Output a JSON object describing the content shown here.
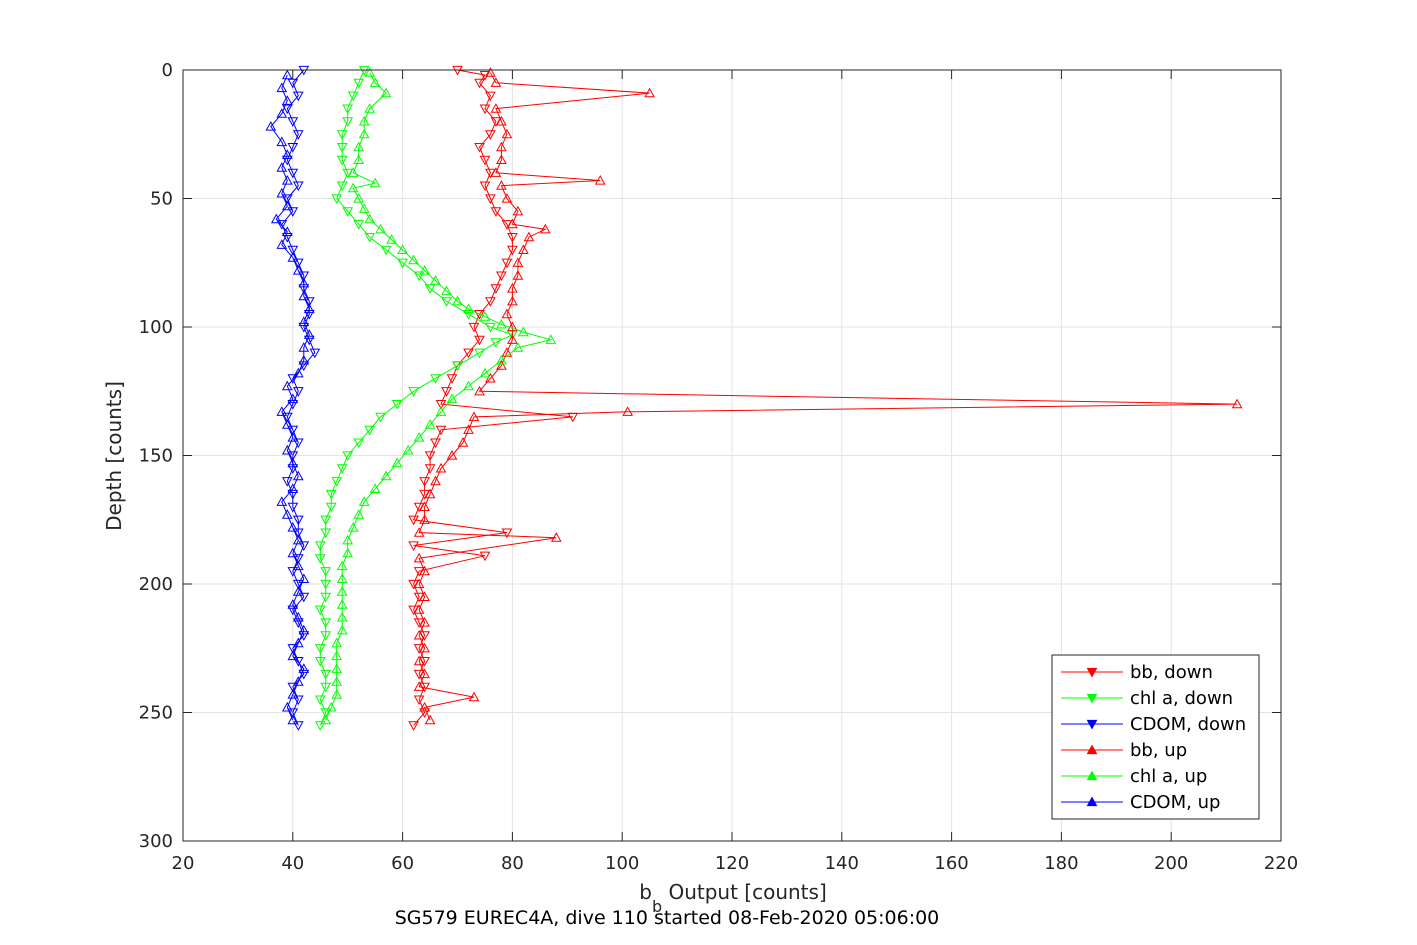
{
  "chart_data": {
    "type": "line",
    "title": "",
    "xlabel_base": "b",
    "xlabel_sub": "b",
    "xlabel_rest": " Output [counts]",
    "ylabel": "Depth [counts]",
    "caption": "SG579 EUREC4A, dive 110 started 08-Feb-2020 05:06:00",
    "xlim": [
      20,
      220
    ],
    "ylim": [
      300,
      0
    ],
    "xticks": [
      20,
      40,
      60,
      80,
      100,
      120,
      140,
      160,
      180,
      200,
      220
    ],
    "yticks": [
      0,
      50,
      100,
      150,
      200,
      250,
      300
    ],
    "grid": true,
    "legend_position": "bottom-right",
    "series": [
      {
        "name": "bb, down",
        "color": "#ff0000",
        "marker": "triangle-down",
        "points": [
          [
            70,
            0
          ],
          [
            75,
            2
          ],
          [
            74,
            5
          ],
          [
            76,
            10
          ],
          [
            75,
            15
          ],
          [
            77,
            20
          ],
          [
            76,
            25
          ],
          [
            74,
            30
          ],
          [
            75,
            35
          ],
          [
            76,
            40
          ],
          [
            75,
            45
          ],
          [
            76,
            50
          ],
          [
            77,
            55
          ],
          [
            79,
            60
          ],
          [
            80,
            65
          ],
          [
            80,
            70
          ],
          [
            79,
            75
          ],
          [
            78,
            80
          ],
          [
            77,
            85
          ],
          [
            76,
            90
          ],
          [
            74,
            95
          ],
          [
            73,
            100
          ],
          [
            74,
            105
          ],
          [
            72,
            110
          ],
          [
            70,
            115
          ],
          [
            69,
            120
          ],
          [
            68,
            125
          ],
          [
            67,
            130
          ],
          [
            91,
            135
          ],
          [
            67,
            140
          ],
          [
            66,
            145
          ],
          [
            65,
            150
          ],
          [
            65,
            155
          ],
          [
            64,
            160
          ],
          [
            64,
            165
          ],
          [
            63,
            170
          ],
          [
            62,
            175
          ],
          [
            79,
            180
          ],
          [
            62,
            185
          ],
          [
            75,
            189
          ],
          [
            63,
            195
          ],
          [
            62,
            200
          ],
          [
            63,
            205
          ],
          [
            62,
            210
          ],
          [
            63,
            215
          ],
          [
            64,
            220
          ],
          [
            63,
            225
          ],
          [
            64,
            230
          ],
          [
            63,
            235
          ],
          [
            64,
            240
          ],
          [
            63,
            245
          ],
          [
            64,
            250
          ],
          [
            62,
            255
          ]
        ]
      },
      {
        "name": "chl a, down",
        "color": "#00ff00",
        "marker": "triangle-down",
        "points": [
          [
            53,
            0
          ],
          [
            52,
            5
          ],
          [
            51,
            10
          ],
          [
            50,
            15
          ],
          [
            50,
            20
          ],
          [
            49,
            25
          ],
          [
            49,
            30
          ],
          [
            49,
            35
          ],
          [
            50,
            40
          ],
          [
            49,
            45
          ],
          [
            48,
            50
          ],
          [
            50,
            55
          ],
          [
            52,
            60
          ],
          [
            54,
            65
          ],
          [
            57,
            70
          ],
          [
            60,
            75
          ],
          [
            63,
            80
          ],
          [
            65,
            85
          ],
          [
            68,
            90
          ],
          [
            72,
            95
          ],
          [
            76,
            100
          ],
          [
            80,
            103
          ],
          [
            77,
            106
          ],
          [
            74,
            110
          ],
          [
            70,
            115
          ],
          [
            66,
            120
          ],
          [
            62,
            125
          ],
          [
            59,
            130
          ],
          [
            56,
            135
          ],
          [
            54,
            140
          ],
          [
            52,
            145
          ],
          [
            50,
            150
          ],
          [
            49,
            155
          ],
          [
            48,
            160
          ],
          [
            47,
            165
          ],
          [
            47,
            170
          ],
          [
            46,
            175
          ],
          [
            46,
            180
          ],
          [
            45,
            185
          ],
          [
            45,
            190
          ],
          [
            46,
            195
          ],
          [
            46,
            200
          ],
          [
            46,
            205
          ],
          [
            45,
            210
          ],
          [
            46,
            215
          ],
          [
            46,
            220
          ],
          [
            45,
            225
          ],
          [
            45,
            230
          ],
          [
            46,
            235
          ],
          [
            46,
            240
          ],
          [
            45,
            245
          ],
          [
            46,
            250
          ],
          [
            45,
            255
          ]
        ]
      },
      {
        "name": "CDOM, down",
        "color": "#0000ff",
        "marker": "triangle-down",
        "points": [
          [
            42,
            0
          ],
          [
            40,
            5
          ],
          [
            41,
            10
          ],
          [
            39,
            15
          ],
          [
            40,
            20
          ],
          [
            41,
            25
          ],
          [
            40,
            30
          ],
          [
            39,
            35
          ],
          [
            40,
            40
          ],
          [
            41,
            45
          ],
          [
            39,
            50
          ],
          [
            40,
            55
          ],
          [
            38,
            60
          ],
          [
            39,
            65
          ],
          [
            40,
            70
          ],
          [
            41,
            75
          ],
          [
            42,
            80
          ],
          [
            42,
            85
          ],
          [
            43,
            90
          ],
          [
            43,
            95
          ],
          [
            42,
            100
          ],
          [
            43,
            105
          ],
          [
            44,
            110
          ],
          [
            42,
            115
          ],
          [
            40,
            120
          ],
          [
            41,
            125
          ],
          [
            40,
            130
          ],
          [
            39,
            135
          ],
          [
            40,
            140
          ],
          [
            41,
            145
          ],
          [
            40,
            150
          ],
          [
            40,
            155
          ],
          [
            39,
            160
          ],
          [
            40,
            165
          ],
          [
            40,
            170
          ],
          [
            41,
            175
          ],
          [
            41,
            180
          ],
          [
            42,
            185
          ],
          [
            41,
            190
          ],
          [
            40,
            195
          ],
          [
            41,
            200
          ],
          [
            42,
            205
          ],
          [
            40,
            210
          ],
          [
            41,
            215
          ],
          [
            42,
            220
          ],
          [
            40,
            225
          ],
          [
            41,
            230
          ],
          [
            42,
            235
          ],
          [
            40,
            240
          ],
          [
            41,
            245
          ],
          [
            40,
            250
          ],
          [
            41,
            255
          ]
        ]
      },
      {
        "name": "bb, up",
        "color": "#ff0000",
        "marker": "triangle-up",
        "points": [
          [
            65,
            253
          ],
          [
            64,
            248
          ],
          [
            73,
            244
          ],
          [
            63,
            240
          ],
          [
            64,
            235
          ],
          [
            63,
            230
          ],
          [
            64,
            225
          ],
          [
            63,
            220
          ],
          [
            64,
            215
          ],
          [
            63,
            210
          ],
          [
            64,
            205
          ],
          [
            63,
            200
          ],
          [
            64,
            195
          ],
          [
            63,
            190
          ],
          [
            88,
            182
          ],
          [
            63,
            180
          ],
          [
            64,
            175
          ],
          [
            64,
            170
          ],
          [
            65,
            165
          ],
          [
            66,
            160
          ],
          [
            67,
            155
          ],
          [
            69,
            150
          ],
          [
            71,
            145
          ],
          [
            72,
            140
          ],
          [
            73,
            135
          ],
          [
            101,
            133
          ],
          [
            212,
            130
          ],
          [
            74,
            125
          ],
          [
            76,
            120
          ],
          [
            78,
            115
          ],
          [
            79,
            110
          ],
          [
            80,
            105
          ],
          [
            80,
            100
          ],
          [
            79,
            95
          ],
          [
            80,
            90
          ],
          [
            80,
            85
          ],
          [
            81,
            80
          ],
          [
            81,
            75
          ],
          [
            82,
            70
          ],
          [
            83,
            65
          ],
          [
            86,
            62
          ],
          [
            80,
            60
          ],
          [
            81,
            55
          ],
          [
            79,
            50
          ],
          [
            78,
            45
          ],
          [
            96,
            43
          ],
          [
            77,
            40
          ],
          [
            78,
            35
          ],
          [
            78,
            30
          ],
          [
            79,
            25
          ],
          [
            78,
            20
          ],
          [
            77,
            15
          ],
          [
            105,
            9
          ],
          [
            77,
            5
          ],
          [
            76,
            1
          ]
        ]
      },
      {
        "name": "chl a, up",
        "color": "#00ff00",
        "marker": "triangle-up",
        "points": [
          [
            46,
            253
          ],
          [
            47,
            248
          ],
          [
            48,
            243
          ],
          [
            48,
            238
          ],
          [
            48,
            233
          ],
          [
            48,
            228
          ],
          [
            48,
            223
          ],
          [
            49,
            218
          ],
          [
            49,
            213
          ],
          [
            49,
            208
          ],
          [
            49,
            203
          ],
          [
            49,
            198
          ],
          [
            49,
            193
          ],
          [
            50,
            188
          ],
          [
            50,
            183
          ],
          [
            51,
            178
          ],
          [
            52,
            173
          ],
          [
            53,
            168
          ],
          [
            55,
            163
          ],
          [
            57,
            158
          ],
          [
            59,
            153
          ],
          [
            61,
            148
          ],
          [
            63,
            143
          ],
          [
            65,
            138
          ],
          [
            67,
            133
          ],
          [
            69,
            128
          ],
          [
            72,
            123
          ],
          [
            75,
            118
          ],
          [
            78,
            113
          ],
          [
            81,
            108
          ],
          [
            87,
            105
          ],
          [
            82,
            102
          ],
          [
            78,
            99
          ],
          [
            75,
            96
          ],
          [
            72,
            93
          ],
          [
            70,
            90
          ],
          [
            68,
            86
          ],
          [
            66,
            82
          ],
          [
            64,
            78
          ],
          [
            62,
            74
          ],
          [
            60,
            70
          ],
          [
            58,
            66
          ],
          [
            56,
            62
          ],
          [
            54,
            58
          ],
          [
            53,
            54
          ],
          [
            52,
            50
          ],
          [
            51,
            46
          ],
          [
            55,
            44
          ],
          [
            51,
            40
          ],
          [
            52,
            35
          ],
          [
            52,
            30
          ],
          [
            53,
            25
          ],
          [
            53,
            20
          ],
          [
            54,
            15
          ],
          [
            57,
            9
          ],
          [
            55,
            5
          ],
          [
            54,
            1
          ]
        ]
      },
      {
        "name": "CDOM, up",
        "color": "#0000ff",
        "marker": "triangle-up",
        "points": [
          [
            40,
            253
          ],
          [
            39,
            248
          ],
          [
            40,
            243
          ],
          [
            41,
            238
          ],
          [
            42,
            233
          ],
          [
            40,
            228
          ],
          [
            41,
            223
          ],
          [
            42,
            218
          ],
          [
            41,
            213
          ],
          [
            40,
            208
          ],
          [
            41,
            203
          ],
          [
            42,
            198
          ],
          [
            41,
            193
          ],
          [
            40,
            188
          ],
          [
            41,
            183
          ],
          [
            40,
            178
          ],
          [
            39,
            173
          ],
          [
            38,
            168
          ],
          [
            40,
            163
          ],
          [
            41,
            158
          ],
          [
            40,
            153
          ],
          [
            39,
            148
          ],
          [
            40,
            143
          ],
          [
            39,
            138
          ],
          [
            38,
            133
          ],
          [
            40,
            128
          ],
          [
            39,
            123
          ],
          [
            41,
            118
          ],
          [
            42,
            113
          ],
          [
            42,
            108
          ],
          [
            43,
            103
          ],
          [
            42,
            98
          ],
          [
            43,
            93
          ],
          [
            42,
            88
          ],
          [
            42,
            83
          ],
          [
            41,
            78
          ],
          [
            40,
            73
          ],
          [
            38,
            68
          ],
          [
            39,
            63
          ],
          [
            37,
            58
          ],
          [
            39,
            53
          ],
          [
            38,
            48
          ],
          [
            39,
            43
          ],
          [
            38,
            38
          ],
          [
            39,
            33
          ],
          [
            38,
            28
          ],
          [
            36,
            22
          ],
          [
            38,
            17
          ],
          [
            39,
            12
          ],
          [
            38,
            7
          ],
          [
            39,
            2
          ]
        ]
      }
    ]
  }
}
